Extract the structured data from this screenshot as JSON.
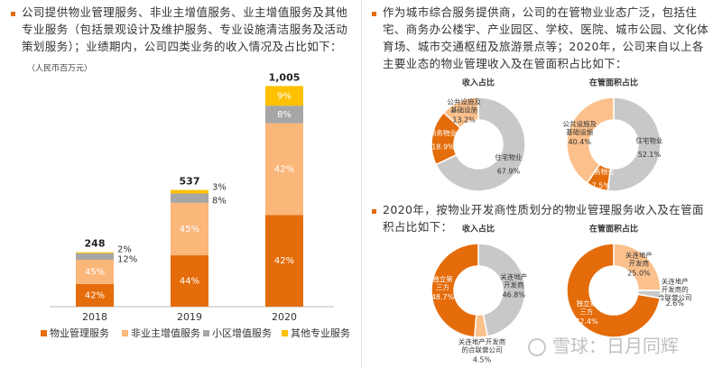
{
  "left_text": "公司提供物业管理服务、非业主增值服务、业主增值服务及其他专业服务（包括景观设计及维护服务、专业设施清洁服务及活动策划服务）；业绩期内，公司四类业务的收入情况及占比如下：",
  "right_text_1": "作为城市综合服务提供商，公司的在管物业业态广泛，包括住宅、商务办公楼宇、产业园区、学校、医院、城市公园、文化体育场、城市交通枢纽及旅游景点等；2020年，公司来自以上各主要业态的物业管理收入及在管面积占比如下：",
  "right_text_2": "2020年，按物业开发商性质划分的物业管理服务收入及在管面积占比如下：",
  "watermark": "雪球：日月同辉",
  "chart_data": [
    {
      "type": "bar",
      "unit": "（人民币百万元）",
      "categories": [
        "2018",
        "2019",
        "2020"
      ],
      "totals": [
        248,
        537,
        1005
      ],
      "total_labels": [
        "248",
        "537",
        "1,005"
      ],
      "series": [
        {
          "name": "物业管理服务",
          "color": "#e46c0a",
          "values": [
            42,
            44,
            42
          ],
          "value_labels": [
            "42%",
            "44%",
            "42%"
          ]
        },
        {
          "name": "非业主增值服务",
          "color": "#fbb67a",
          "values": [
            45,
            45,
            42
          ],
          "value_labels": [
            "45%",
            "45%",
            "42%"
          ]
        },
        {
          "name": "小区增值服务",
          "color": "#a6a6a6",
          "values": [
            12,
            8,
            8
          ],
          "value_labels": [
            "12%",
            "8%",
            "8%"
          ]
        },
        {
          "name": "其他专业服务",
          "color": "#ffc000",
          "values": [
            2,
            3,
            9
          ],
          "value_labels": [
            "2%",
            "3%",
            "9%"
          ]
        }
      ]
    },
    {
      "type": "donut",
      "title": "收入占比",
      "categories": [
        "住宅物业",
        "商务物业",
        "公共设施及\n基础设施"
      ],
      "values": [
        67.9,
        18.9,
        13.2
      ],
      "value_labels": [
        "67.9%",
        "18.9%",
        "13.2%"
      ],
      "colors": [
        "#c8c8c8",
        "#e46c0a",
        "#fbc08c"
      ]
    },
    {
      "type": "donut",
      "title": "在管面积占比",
      "categories": [
        "住宅物业",
        "商务物业",
        "公共设施及\n基础设施"
      ],
      "values": [
        52.1,
        7.5,
        40.4
      ],
      "value_labels": [
        "52.1%",
        "7.5%",
        "40.4%"
      ],
      "colors": [
        "#c8c8c8",
        "#e46c0a",
        "#fbc08c"
      ]
    },
    {
      "type": "donut",
      "title": "收入占比",
      "categories": [
        "关连地产\n开发商",
        "关连地产开发商\n的合联营公司",
        "独立第\n三方"
      ],
      "values": [
        46.8,
        4.5,
        48.7
      ],
      "value_labels": [
        "46.8%",
        "4.5%",
        "48.7%"
      ],
      "colors": [
        "#c8c8c8",
        "#fbc08c",
        "#e46c0a"
      ]
    },
    {
      "type": "donut",
      "title": "在管面积占比",
      "categories": [
        "关连地产\n开发商",
        "关连地产\n开发商的\n合联营公司",
        "独立第\n三方"
      ],
      "values": [
        25,
        2.6,
        72.4
      ],
      "value_labels": [
        "25.0%",
        "2.6%",
        "72.4%"
      ],
      "colors": [
        "#fbc08c",
        "#c8c8c8",
        "#e46c0a"
      ]
    }
  ]
}
